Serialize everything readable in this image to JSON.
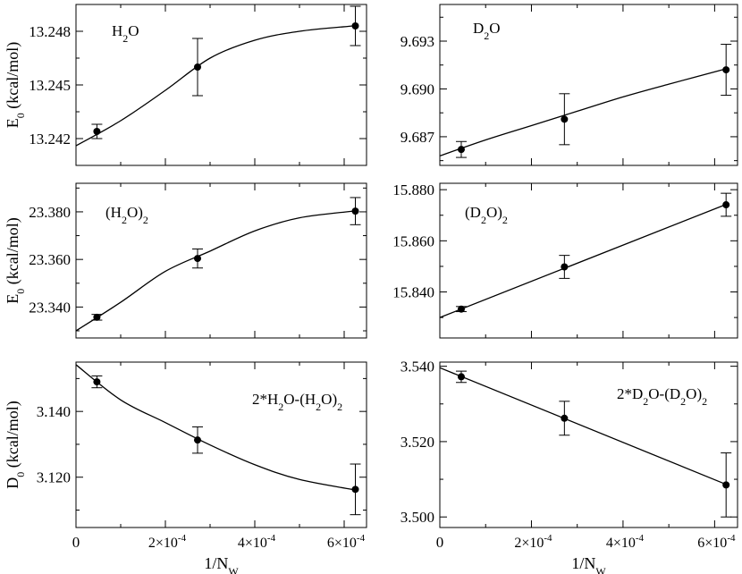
{
  "x_tick_labels": [
    "0",
    "2×10",
    "-4",
    "4×10",
    "-4",
    "6×10",
    "-4"
  ],
  "chart_data": [
    {
      "type": "scatter",
      "title": "H2O",
      "label_parts": [
        "H",
        "2",
        "O"
      ],
      "ylabel_parts": [
        "E",
        "0",
        " (kcal/mol)"
      ],
      "xlabel_parts": [
        "",
        "",
        ""
      ],
      "xlim": [
        0,
        0.00065
      ],
      "ylim": [
        13.2405,
        13.2495
      ],
      "yticks": [
        13.242,
        13.245,
        13.248
      ],
      "ytick_labels": [
        "13.242",
        "13.245",
        "13.248"
      ],
      "show_x_ticklabels": false,
      "x": [
        4.68e-05,
        0.000272,
        0.000625
      ],
      "y": [
        13.2424,
        13.246,
        13.2483
      ],
      "err": [
        0.0004,
        0.0016,
        0.0011
      ],
      "fit": {
        "kind": "curve",
        "x": [
          0,
          0.0001,
          0.0002,
          0.0003,
          0.0004,
          0.0005,
          0.00062
        ],
        "y": [
          13.2416,
          13.243,
          13.2447,
          13.2465,
          13.2475,
          13.248,
          13.2483
        ]
      }
    },
    {
      "type": "scatter",
      "title": "D2O",
      "label_parts": [
        "D",
        "2",
        "O"
      ],
      "ylabel_parts": [
        "",
        "",
        ""
      ],
      "xlabel_parts": [
        "",
        "",
        ""
      ],
      "xlim": [
        0,
        0.00065
      ],
      "ylim": [
        9.6852,
        9.6953
      ],
      "yticks": [
        9.687,
        9.69,
        9.693
      ],
      "ytick_labels": [
        "9.687",
        "9.690",
        "9.693"
      ],
      "show_x_ticklabels": false,
      "x": [
        4.68e-05,
        0.000272,
        0.000625
      ],
      "y": [
        9.6862,
        9.6881,
        9.6912
      ],
      "err": [
        0.0005,
        0.0016,
        0.0016
      ],
      "fit": {
        "kind": "curve",
        "x": [
          0,
          0.0001,
          0.0002,
          0.0003,
          0.0004,
          0.0005,
          0.00063
        ],
        "y": [
          9.6858,
          9.6868,
          9.6877,
          9.6886,
          9.6895,
          9.6903,
          9.6913
        ]
      }
    },
    {
      "type": "scatter",
      "title": "(H2O)2",
      "label_parts": [
        "(H",
        "2",
        "O)",
        "2"
      ],
      "ylabel_parts": [
        "E",
        "0",
        " (kcal/mol)"
      ],
      "xlabel_parts": [
        "",
        "",
        ""
      ],
      "xlim": [
        0,
        0.00065
      ],
      "ylim": [
        23.327,
        23.392
      ],
      "yticks": [
        23.34,
        23.36,
        23.38
      ],
      "ytick_labels": [
        "23.340",
        "23.360",
        "23.380"
      ],
      "show_x_ticklabels": false,
      "x": [
        4.68e-05,
        0.000272,
        0.000625
      ],
      "y": [
        23.3357,
        23.3604,
        23.3803
      ],
      "err": [
        0.0012,
        0.004,
        0.0057
      ],
      "fit": {
        "kind": "curve",
        "x": [
          0,
          0.0001,
          0.0002,
          0.0003,
          0.0004,
          0.0005,
          0.00063
        ],
        "y": [
          23.33,
          23.342,
          23.355,
          23.3635,
          23.372,
          23.3775,
          23.3805
        ]
      }
    },
    {
      "type": "scatter",
      "title": "(D2O)2",
      "label_parts": [
        "(D",
        "2",
        "O)",
        "2"
      ],
      "ylabel_parts": [
        "",
        "",
        ""
      ],
      "xlabel_parts": [
        "",
        "",
        ""
      ],
      "xlim": [
        0,
        0.00065
      ],
      "ylim": [
        15.822,
        15.8825
      ],
      "yticks": [
        15.84,
        15.86,
        15.88
      ],
      "ytick_labels": [
        "15.840",
        "15.860",
        "15.880"
      ],
      "show_x_ticklabels": false,
      "x": [
        4.68e-05,
        0.000272,
        0.000625
      ],
      "y": [
        15.8333,
        15.8498,
        15.8741
      ],
      "err": [
        0.001,
        0.0045,
        0.0045
      ],
      "fit": {
        "kind": "line",
        "x": [
          0,
          0.00063
        ],
        "y": [
          15.83,
          15.8746
        ]
      }
    },
    {
      "type": "scatter",
      "title": "2*H2O-(H2O)2",
      "label_parts": [
        "2*H",
        "2",
        "O-(H",
        "2",
        "O)",
        "2"
      ],
      "ylabel_parts": [
        "D",
        "0",
        " (kcal/mol)"
      ],
      "xlabel_parts": [
        "1/N",
        "W",
        ""
      ],
      "xlim": [
        0,
        0.00065
      ],
      "ylim": [
        3.1047,
        3.155
      ],
      "yticks": [
        3.12,
        3.14
      ],
      "ytick_labels": [
        "3.120",
        "3.140"
      ],
      "show_x_ticklabels": true,
      "x": [
        4.68e-05,
        0.000272,
        0.000625
      ],
      "y": [
        3.149,
        3.1313,
        3.1163
      ],
      "err": [
        0.0018,
        0.004,
        0.0077
      ],
      "fit": {
        "kind": "curve",
        "x": [
          0,
          0.0001,
          0.0002,
          0.0003,
          0.0004,
          0.0005,
          0.00063
        ],
        "y": [
          3.1542,
          3.1435,
          3.1366,
          3.1298,
          3.1238,
          3.1193,
          3.116
        ]
      }
    },
    {
      "type": "scatter",
      "title": "2*D2O-(D2O)2",
      "label_parts": [
        "2*D",
        "2",
        "O-(D",
        "2",
        "O)",
        "2"
      ],
      "ylabel_parts": [
        "",
        "",
        ""
      ],
      "xlabel_parts": [
        "1/N",
        "W",
        ""
      ],
      "xlim": [
        0,
        0.00065
      ],
      "ylim": [
        3.4972,
        3.5411
      ],
      "yticks": [
        3.5,
        3.52,
        3.54
      ],
      "ytick_labels": [
        "3.500",
        "3.520",
        "3.540"
      ],
      "show_x_ticklabels": true,
      "x": [
        4.68e-05,
        0.000272,
        0.000625
      ],
      "y": [
        3.5372,
        3.5262,
        3.5085
      ],
      "err": [
        0.0015,
        0.0045,
        0.0085
      ],
      "fit": {
        "kind": "line",
        "x": [
          0,
          0.00063
        ],
        "y": [
          3.5396,
          3.5084
        ]
      }
    }
  ]
}
